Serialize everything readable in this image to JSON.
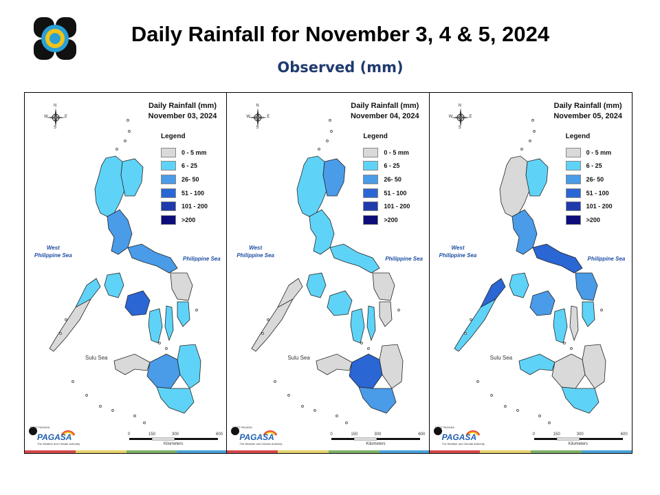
{
  "header": {
    "title": "Daily Rainfall for November 3, 4 & 5, 2024",
    "subtitle": "Observed (mm)"
  },
  "legend": {
    "title": "Legend",
    "items": [
      {
        "label": "0 - 5 mm",
        "color": "#d9d9d9"
      },
      {
        "label": "6 - 25",
        "color": "#5fd3f7"
      },
      {
        "label": "26- 50",
        "color": "#4a9be8"
      },
      {
        "label": "51 - 100",
        "color": "#2a66d4"
      },
      {
        "label": "101 - 200",
        "color": "#1f3aad"
      },
      {
        "label": ">200",
        "color": "#0d0d7a"
      }
    ]
  },
  "seas": {
    "west": "West\nPhilippine Sea",
    "east": "Philippine Sea",
    "south": "Sulu Sea"
  },
  "scale": {
    "ticks": [
      "0",
      "150",
      "300",
      "600"
    ],
    "unit": "Kilometers"
  },
  "branding": {
    "name": "PAGASA",
    "tagline": "The Weather and Climate Authority",
    "small": "DOST PAGASA"
  },
  "compass": {
    "n": "N",
    "s": "S",
    "e": "E",
    "w": "W"
  },
  "panels": [
    {
      "heading": "Daily Rainfall (mm)",
      "date": "November 03, 2024",
      "regions": {
        "north_luzon": "#5fd3f7",
        "cagayan": "#5fd3f7",
        "central_luzon": "#4a9be8",
        "bicol": "#4a9be8",
        "mindoro": "#5fd3f7",
        "panay": "#2a66d4",
        "negros": "#5fd3f7",
        "cebu": "#5fd3f7",
        "samar": "#d9d9d9",
        "leyte": "#5fd3f7",
        "palawan": "#d9d9d9",
        "palawan_north": "#5fd3f7",
        "zamboanga": "#d9d9d9",
        "central_mindanao": "#4a9be8",
        "east_mindanao": "#5fd3f7",
        "south_mindanao": "#5fd3f7"
      }
    },
    {
      "heading": "Daily Rainfall (mm)",
      "date": "November 04, 2024",
      "regions": {
        "north_luzon": "#5fd3f7",
        "cagayan": "#4a9be8",
        "central_luzon": "#5fd3f7",
        "bicol": "#5fd3f7",
        "mindoro": "#5fd3f7",
        "panay": "#5fd3f7",
        "negros": "#5fd3f7",
        "cebu": "#5fd3f7",
        "samar": "#d9d9d9",
        "leyte": "#d9d9d9",
        "palawan": "#d9d9d9",
        "palawan_north": "#d9d9d9",
        "zamboanga": "#d9d9d9",
        "central_mindanao": "#2a66d4",
        "east_mindanao": "#d9d9d9",
        "south_mindanao": "#4a9be8"
      }
    },
    {
      "heading": "Daily Rainfall (mm)",
      "date": "November 05, 2024",
      "regions": {
        "north_luzon": "#d9d9d9",
        "cagayan": "#5fd3f7",
        "central_luzon": "#4a9be8",
        "bicol": "#2a66d4",
        "mindoro": "#5fd3f7",
        "panay": "#4a9be8",
        "negros": "#5fd3f7",
        "cebu": "#d9d9d9",
        "samar": "#4a9be8",
        "leyte": "#5fd3f7",
        "palawan": "#5fd3f7",
        "palawan_north": "#2a66d4",
        "zamboanga": "#5fd3f7",
        "central_mindanao": "#d9d9d9",
        "east_mindanao": "#d9d9d9",
        "south_mindanao": "#5fd3f7"
      }
    }
  ],
  "colors": {
    "strip": [
      "#d64a4a",
      "#e7d36a",
      "#7fb36a",
      "#4aa3d8"
    ]
  }
}
